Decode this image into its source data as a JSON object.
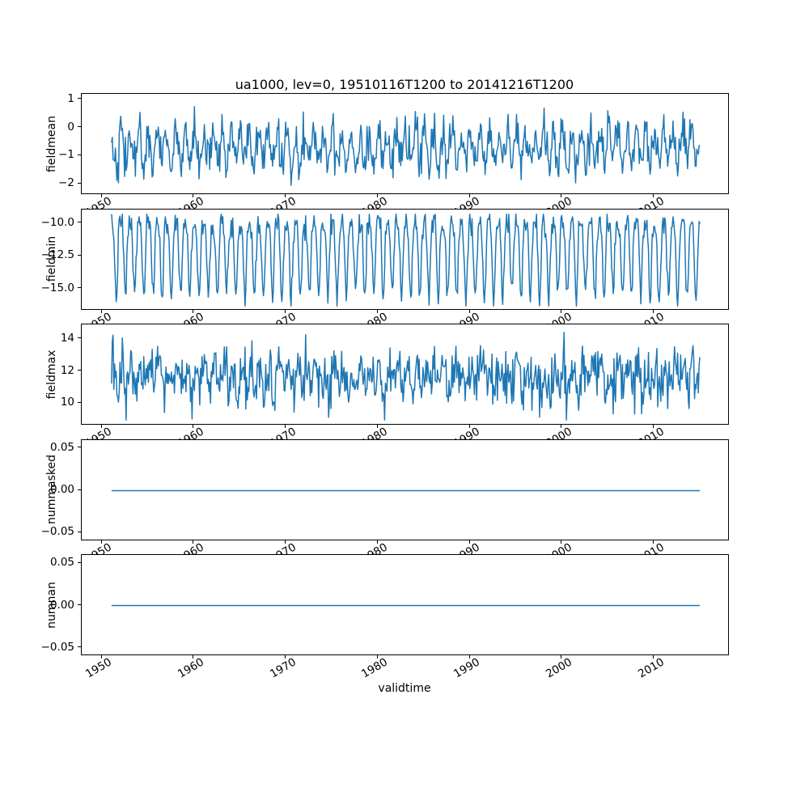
{
  "chart_data": {
    "type": "line",
    "title": "ua1000, lev=0, 19510116T1200 to 20141216T1200",
    "xlabel": "validtime",
    "line_color": "#1f77b4",
    "grid": false,
    "legend": "none",
    "x_start": 1951.0417,
    "x_end": 2014.9583,
    "xlim": [
      1947.8,
      2018.2
    ],
    "x_ticks": [
      1950,
      1960,
      1970,
      1980,
      1990,
      2000,
      2010
    ],
    "x_tick_labels": [
      "1950",
      "1960",
      "1970",
      "1980",
      "1990",
      "2000",
      "2010"
    ],
    "x_tick_rotation_deg": 30,
    "points_per_series": 768,
    "subplots": [
      {
        "ylabel": "fieldmean",
        "ylim": [
          -2.4,
          1.2
        ],
        "yticks": [
          1,
          0,
          -1,
          -2
        ],
        "ytick_labels": [
          "1",
          "0",
          "−1",
          "−2"
        ],
        "approx_range": [
          -2.25,
          0.95
        ],
        "approx_mean": -0.72,
        "pattern": "noisy monthly series with annual cycle",
        "generator": {
          "kind": "seasonal",
          "seed": 42,
          "base": -0.72,
          "amp": 0.55,
          "phase": 0,
          "noise": 0.38,
          "clamp": [
            -2.25,
            0.95
          ]
        }
      },
      {
        "ylabel": "fieldmin",
        "ylim": [
          -16.65,
          -8.95
        ],
        "yticks": [
          -10.0,
          -12.5,
          -15.0
        ],
        "ytick_labels": [
          "−10.0",
          "−12.5",
          "−15.0"
        ],
        "approx_range": [
          -16.3,
          -9.3
        ],
        "approx_mean": -11.3,
        "pattern": "values near -10 with periodic seasonal dips to about -15.5/-16",
        "generator": {
          "kind": "dip",
          "seed": 7,
          "base": -10.0,
          "amp": 5.6,
          "power": 2.2,
          "phase": 6,
          "noise": 0.5,
          "clamp": [
            -16.3,
            -9.3
          ]
        }
      },
      {
        "ylabel": "fieldmax",
        "ylim": [
          8.6,
          14.9
        ],
        "yticks": [
          14,
          12,
          10
        ],
        "ytick_labels": [
          "14",
          "12",
          "10"
        ],
        "approx_range": [
          8.95,
          14.6
        ],
        "approx_mean": 11.55,
        "pattern": "noisy monthly series centered near 11.5",
        "generator": {
          "kind": "seasonal",
          "seed": 13,
          "base": 11.55,
          "amp": 0.5,
          "phase": 2,
          "noise": 0.85,
          "clamp": [
            8.95,
            14.6
          ]
        }
      },
      {
        "ylabel": "nummasked",
        "ylim": [
          -0.06,
          0.06
        ],
        "yticks": [
          0.05,
          0.0,
          -0.05
        ],
        "ytick_labels": [
          "0.05",
          "0.00",
          "−0.05"
        ],
        "constant_value": 0,
        "pattern": "flat line at zero",
        "generator": {
          "kind": "flat",
          "seed": 1,
          "base": 0
        }
      },
      {
        "ylabel": "numnan",
        "ylim": [
          -0.06,
          0.06
        ],
        "yticks": [
          0.05,
          0.0,
          -0.05
        ],
        "ytick_labels": [
          "0.05",
          "0.00",
          "−0.05"
        ],
        "constant_value": 0,
        "pattern": "flat line at zero",
        "generator": {
          "kind": "flat",
          "seed": 2,
          "base": 0
        }
      }
    ]
  }
}
